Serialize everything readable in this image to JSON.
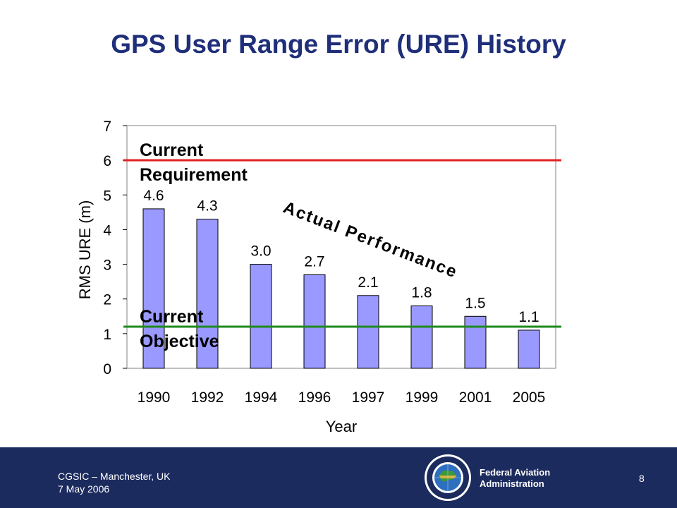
{
  "title": "GPS User Range Error (URE) History",
  "chart_data": {
    "type": "bar",
    "categories": [
      "1990",
      "1992",
      "1994",
      "1996",
      "1997",
      "1999",
      "2001",
      "2005"
    ],
    "values": [
      4.6,
      4.3,
      3.0,
      2.7,
      2.1,
      1.8,
      1.5,
      1.1
    ],
    "data_labels": [
      "4.6",
      "4.3",
      "3.0",
      "2.7",
      "2.1",
      "1.8",
      "1.5",
      "1.1"
    ],
    "xlabel": "Year",
    "ylabel": "RMS URE (m)",
    "ylim": [
      0,
      7
    ],
    "yticks": [
      "0",
      "1",
      "2",
      "3",
      "4",
      "5",
      "6",
      "7"
    ],
    "grid": false,
    "bar_color": "#9999ff",
    "reference_lines": [
      {
        "label_line1": "Current",
        "label_line2": "Requirement",
        "value": 6.0,
        "color": "#e02020"
      },
      {
        "label_line1": "Current",
        "label_line2": "Objective",
        "value": 1.2,
        "color": "#1f8a1f"
      }
    ],
    "annotation": "Actual Performance"
  },
  "footer": {
    "event": "CGSIC – Manchester, UK",
    "date": "7 May 2006",
    "agency_line1": "Federal Aviation",
    "agency_line2": "Administration",
    "page": "8",
    "seal_icon": "faa-seal-icon"
  }
}
